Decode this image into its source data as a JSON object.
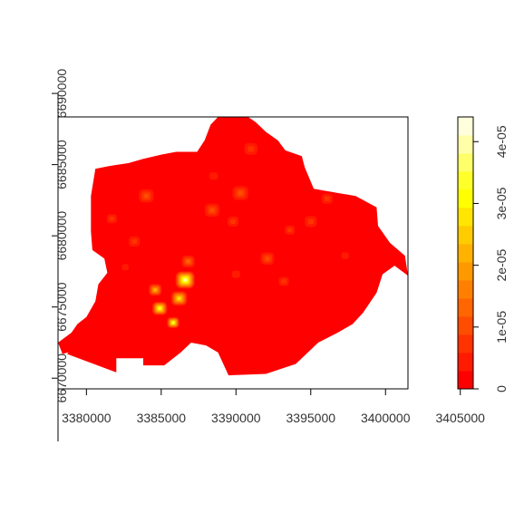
{
  "chart_data": {
    "type": "heatmap",
    "title": "",
    "xlabel": "",
    "ylabel": "",
    "x_axis": {
      "ticks": [
        3380000,
        3385000,
        3390000,
        3395000,
        3400000,
        3405000
      ],
      "tick_labels": [
        "3380000",
        "3385000",
        "3390000",
        "3395000",
        "3400000",
        "3405000"
      ],
      "range": [
        3378100,
        3401500
      ]
    },
    "y_axis": {
      "ticks": [
        6670000,
        6675000,
        6680000,
        6685000,
        6690000
      ],
      "tick_labels": [
        "6670000",
        "6675000",
        "6680000",
        "6685000",
        "6690000"
      ],
      "range": [
        6669250,
        6688350
      ]
    },
    "legend": {
      "position": "right",
      "range": [
        0,
        4.4e-05
      ],
      "ticks": [
        0,
        1e-05,
        2e-05,
        3e-05,
        4e-05
      ],
      "tick_labels": [
        "0",
        "1e-05",
        "2e-05",
        "3e-05",
        "4e-05"
      ],
      "palette": [
        "#ff0000",
        "#ff1a00",
        "#ff3300",
        "#ff4d00",
        "#ff6600",
        "#ff8000",
        "#ff9900",
        "#ffb300",
        "#ffcc00",
        "#ffe500",
        "#ffff00",
        "#ffff2a",
        "#ffff6a",
        "#ffffaa",
        "#ffffdd"
      ]
    },
    "grid": false,
    "region_outline": [
      [
        3382000,
        6670400
      ],
      [
        3382000,
        6671400
      ],
      [
        3383800,
        6671400
      ],
      [
        3383800,
        6670900
      ],
      [
        3385200,
        6670900
      ],
      [
        3386300,
        6671800
      ],
      [
        3387000,
        6672500
      ],
      [
        3388000,
        6672300
      ],
      [
        3388800,
        6671800
      ],
      [
        3389500,
        6670200
      ],
      [
        3392000,
        6670300
      ],
      [
        3394000,
        6671000
      ],
      [
        3395500,
        6672500
      ],
      [
        3396800,
        6673200
      ],
      [
        3397800,
        6673800
      ],
      [
        3398500,
        6674600
      ],
      [
        3399400,
        6676000
      ],
      [
        3399800,
        6677300
      ],
      [
        3400600,
        6677900
      ],
      [
        3401500,
        6677200
      ],
      [
        3401300,
        6678600
      ],
      [
        3400300,
        6679500
      ],
      [
        3399500,
        6680700
      ],
      [
        3399400,
        6682000
      ],
      [
        3398000,
        6682800
      ],
      [
        3396300,
        6683100
      ],
      [
        3395200,
        6683300
      ],
      [
        3394600,
        6684800
      ],
      [
        3394400,
        6685600
      ],
      [
        3393300,
        6686000
      ],
      [
        3392800,
        6686700
      ],
      [
        3392000,
        6687300
      ],
      [
        3391300,
        6688000
      ],
      [
        3390800,
        6688350
      ],
      [
        3388800,
        6688350
      ],
      [
        3388300,
        6687800
      ],
      [
        3387900,
        6686700
      ],
      [
        3387400,
        6685900
      ],
      [
        3386000,
        6685900
      ],
      [
        3385000,
        6685700
      ],
      [
        3383800,
        6685400
      ],
      [
        3382800,
        6685100
      ],
      [
        3381500,
        6684900
      ],
      [
        3380600,
        6684700
      ],
      [
        3380300,
        6682800
      ],
      [
        3380300,
        6680300
      ],
      [
        3380400,
        6679000
      ],
      [
        3381200,
        6678400
      ],
      [
        3381400,
        6677400
      ],
      [
        3380800,
        6676600
      ],
      [
        3380600,
        6675400
      ],
      [
        3380000,
        6674300
      ],
      [
        3379400,
        6673800
      ],
      [
        3379000,
        6673200
      ],
      [
        3378100,
        6672500
      ],
      [
        3378400,
        6671700
      ],
      [
        3379800,
        6672100
      ],
      [
        3381400,
        6672500
      ],
      [
        3382800,
        6672700
      ],
      [
        3384500,
        6672100
      ],
      [
        3385300,
        6672600
      ],
      [
        3385600,
        6673200
      ],
      [
        3385200,
        6673600
      ],
      [
        3384400,
        6673900
      ],
      [
        3383700,
        6673800
      ],
      [
        3383200,
        6673500
      ],
      [
        3382500,
        6673600
      ],
      [
        3382000,
        6673400
      ],
      [
        3381300,
        6672900
      ],
      [
        3380300,
        6672700
      ],
      [
        3379500,
        6672400
      ],
      [
        3379000,
        6672000
      ],
      [
        3378700,
        6671700
      ]
    ],
    "hotspots": [
      {
        "x": 3386600,
        "y": 6676900,
        "value": 4.2e-05,
        "radius": 700
      },
      {
        "x": 3384900,
        "y": 6674900,
        "value": 3.6e-05,
        "radius": 550
      },
      {
        "x": 3385800,
        "y": 6673900,
        "value": 3.4e-05,
        "radius": 450
      },
      {
        "x": 3386200,
        "y": 6675600,
        "value": 2.8e-05,
        "radius": 600
      },
      {
        "x": 3384600,
        "y": 6676200,
        "value": 2.4e-05,
        "radius": 500
      },
      {
        "x": 3386800,
        "y": 6678200,
        "value": 1.6e-05,
        "radius": 550
      },
      {
        "x": 3384000,
        "y": 6682800,
        "value": 1.2e-05,
        "radius": 650
      },
      {
        "x": 3383200,
        "y": 6679600,
        "value": 1e-05,
        "radius": 550
      },
      {
        "x": 3381700,
        "y": 6681200,
        "value": 8e-06,
        "radius": 500
      },
      {
        "x": 3388400,
        "y": 6681800,
        "value": 1.1e-05,
        "radius": 650
      },
      {
        "x": 3390300,
        "y": 6683000,
        "value": 1.2e-05,
        "radius": 700
      },
      {
        "x": 3391000,
        "y": 6686100,
        "value": 1e-05,
        "radius": 650
      },
      {
        "x": 3389800,
        "y": 6681000,
        "value": 9e-06,
        "radius": 550
      },
      {
        "x": 3392100,
        "y": 6678400,
        "value": 1.2e-05,
        "radius": 600
      },
      {
        "x": 3393200,
        "y": 6676800,
        "value": 9e-06,
        "radius": 500
      },
      {
        "x": 3395000,
        "y": 6681000,
        "value": 1e-05,
        "radius": 600
      },
      {
        "x": 3396100,
        "y": 6682600,
        "value": 9e-06,
        "radius": 550
      },
      {
        "x": 3393600,
        "y": 6680400,
        "value": 8e-06,
        "radius": 500
      },
      {
        "x": 3390000,
        "y": 6677300,
        "value": 6e-06,
        "radius": 550
      },
      {
        "x": 3388500,
        "y": 6684200,
        "value": 7e-06,
        "radius": 550
      },
      {
        "x": 3382600,
        "y": 6677800,
        "value": 7e-06,
        "radius": 450
      },
      {
        "x": 3397300,
        "y": 6678600,
        "value": 6e-06,
        "radius": 500
      }
    ]
  }
}
